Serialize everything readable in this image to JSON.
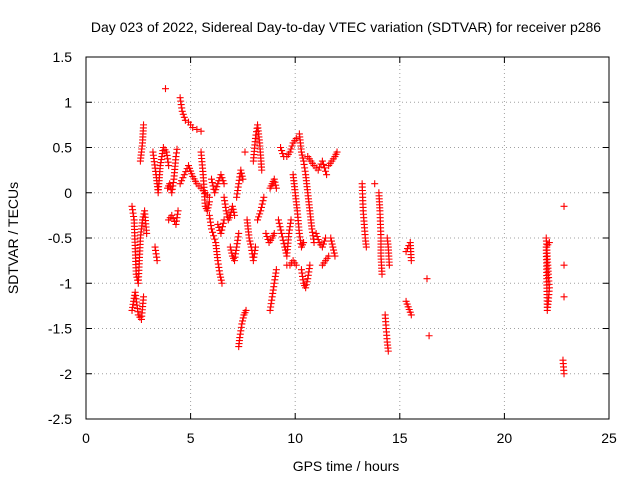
{
  "chart_data": {
    "type": "scatter",
    "title": "Day 023 of 2022, Sidereal Day-to-day VTEC variation (SDTVAR) for receiver p286",
    "xlabel": "GPS time / hours",
    "ylabel": "SDTVAR / TECUs",
    "xlim": [
      0,
      25
    ],
    "ylim": [
      -2.5,
      1.5
    ],
    "xticks": [
      0,
      5,
      10,
      15,
      20,
      25
    ],
    "xtick_labels": [
      "0",
      "5",
      "10",
      "15",
      "20",
      "25"
    ],
    "yticks": [
      -2.5,
      -2,
      -1.5,
      -1,
      -0.5,
      0,
      0.5,
      1,
      1.5
    ],
    "ytick_labels": [
      "-2.5",
      "-2",
      "-1.5",
      "-1",
      "-0.5",
      "0",
      "0.5",
      "1",
      "1.5"
    ],
    "grid": true,
    "marker": "plus",
    "color": "#ff0000",
    "series": [
      {
        "name": "SDTVAR",
        "segments": [
          [
            [
              2.2,
              -0.15
            ],
            [
              2.3,
              -0.3
            ],
            [
              2.4,
              -0.9
            ],
            [
              2.5,
              -1.0
            ],
            [
              2.6,
              -0.5
            ],
            [
              2.7,
              -0.3
            ],
            [
              2.8,
              -0.2
            ],
            [
              2.9,
              -0.45
            ]
          ],
          [
            [
              2.2,
              -1.3
            ],
            [
              2.35,
              -1.1
            ],
            [
              2.5,
              -1.35
            ],
            [
              2.65,
              -1.4
            ],
            [
              2.75,
              -1.15
            ]
          ],
          [
            [
              2.6,
              0.35
            ],
            [
              2.7,
              0.55
            ],
            [
              2.75,
              0.75
            ]
          ],
          [
            [
              3.2,
              0.45
            ],
            [
              3.35,
              0.2
            ],
            [
              3.45,
              0.0
            ],
            [
              3.55,
              0.3
            ],
            [
              3.7,
              0.5
            ],
            [
              3.85,
              0.45
            ],
            [
              3.95,
              0.3
            ]
          ],
          [
            [
              3.3,
              -0.6
            ],
            [
              3.4,
              -0.75
            ]
          ],
          [
            [
              3.8,
              1.15
            ]
          ],
          [
            [
              3.9,
              0.05
            ],
            [
              4.0,
              0.1
            ],
            [
              4.1,
              0.0
            ],
            [
              4.2,
              0.15
            ],
            [
              4.3,
              0.4
            ],
            [
              4.35,
              0.48
            ]
          ],
          [
            [
              3.95,
              -0.3
            ],
            [
              4.1,
              -0.25
            ],
            [
              4.3,
              -0.35
            ],
            [
              4.4,
              -0.2
            ]
          ],
          [
            [
              4.5,
              1.05
            ],
            [
              4.6,
              0.9
            ],
            [
              4.75,
              0.8
            ],
            [
              4.9,
              0.78
            ],
            [
              5.1,
              0.72
            ],
            [
              5.3,
              0.7
            ],
            [
              5.5,
              0.68
            ]
          ],
          [
            [
              4.5,
              0.1
            ],
            [
              4.7,
              0.2
            ],
            [
              4.9,
              0.3
            ],
            [
              5.1,
              0.18
            ],
            [
              5.3,
              0.1
            ],
            [
              5.5,
              0.05
            ],
            [
              5.7,
              0.0
            ],
            [
              5.9,
              -0.05
            ]
          ],
          [
            [
              5.5,
              0.45
            ],
            [
              5.6,
              0.2
            ],
            [
              5.7,
              -0.15
            ],
            [
              5.8,
              -0.2
            ],
            [
              5.9,
              -0.1
            ]
          ],
          [
            [
              5.9,
              -0.25
            ],
            [
              6.0,
              -0.4
            ],
            [
              6.2,
              -0.55
            ],
            [
              6.3,
              -0.75
            ],
            [
              6.4,
              -0.9
            ],
            [
              6.5,
              -1.0
            ]
          ],
          [
            [
              6.0,
              0.15
            ],
            [
              6.15,
              0.0
            ],
            [
              6.3,
              0.1
            ],
            [
              6.45,
              0.2
            ],
            [
              6.6,
              0.1
            ]
          ],
          [
            [
              6.3,
              -0.35
            ],
            [
              6.45,
              -0.45
            ],
            [
              6.6,
              -0.3
            ]
          ],
          [
            [
              6.6,
              -0.05
            ],
            [
              6.7,
              -0.2
            ],
            [
              6.8,
              -0.3
            ],
            [
              6.9,
              -0.25
            ],
            [
              7.0,
              -0.15
            ],
            [
              7.1,
              -0.25
            ]
          ],
          [
            [
              6.9,
              -0.6
            ],
            [
              7.0,
              -0.7
            ],
            [
              7.1,
              -0.75
            ],
            [
              7.2,
              -0.6
            ],
            [
              7.3,
              -0.45
            ]
          ],
          [
            [
              7.2,
              -0.05
            ],
            [
              7.3,
              0.1
            ],
            [
              7.4,
              0.25
            ],
            [
              7.5,
              0.15
            ]
          ],
          [
            [
              7.3,
              -1.7
            ],
            [
              7.35,
              -1.6
            ],
            [
              7.45,
              -1.45
            ],
            [
              7.55,
              -1.35
            ],
            [
              7.65,
              -1.3
            ]
          ],
          [
            [
              7.6,
              0.45
            ]
          ],
          [
            [
              7.7,
              -0.3
            ],
            [
              7.8,
              -0.5
            ],
            [
              7.9,
              -0.6
            ],
            [
              8.0,
              -0.75
            ],
            [
              8.1,
              -0.6
            ]
          ],
          [
            [
              8.0,
              0.35
            ],
            [
              8.1,
              0.6
            ],
            [
              8.2,
              0.75
            ],
            [
              8.3,
              0.55
            ],
            [
              8.4,
              0.25
            ]
          ],
          [
            [
              8.2,
              -0.3
            ],
            [
              8.35,
              -0.2
            ],
            [
              8.5,
              -0.05
            ]
          ],
          [
            [
              8.8,
              0.05
            ],
            [
              8.9,
              0.1
            ],
            [
              9.0,
              0.15
            ],
            [
              9.1,
              0.05
            ]
          ],
          [
            [
              8.6,
              -0.45
            ],
            [
              8.75,
              -0.55
            ],
            [
              8.9,
              -0.5
            ],
            [
              9.0,
              -0.45
            ]
          ],
          [
            [
              8.8,
              -1.3
            ],
            [
              8.9,
              -1.15
            ],
            [
              9.0,
              -1.0
            ],
            [
              9.1,
              -0.85
            ]
          ],
          [
            [
              9.3,
              0.5
            ],
            [
              9.45,
              0.4
            ],
            [
              9.6,
              0.4
            ],
            [
              9.75,
              0.45
            ],
            [
              9.9,
              0.55
            ],
            [
              10.05,
              0.6
            ]
          ],
          [
            [
              9.2,
              -0.3
            ],
            [
              9.35,
              -0.45
            ],
            [
              9.5,
              -0.6
            ],
            [
              9.6,
              -0.7
            ],
            [
              9.7,
              -0.45
            ],
            [
              9.8,
              -0.3
            ]
          ],
          [
            [
              9.6,
              -0.8
            ],
            [
              9.75,
              -0.8
            ],
            [
              9.9,
              -0.75
            ],
            [
              10.05,
              -0.8
            ]
          ],
          [
            [
              9.9,
              0.2
            ],
            [
              10.0,
              0.0
            ],
            [
              10.1,
              -0.2
            ],
            [
              10.2,
              -0.45
            ],
            [
              10.3,
              -0.6
            ],
            [
              10.4,
              -0.55
            ]
          ],
          [
            [
              10.2,
              0.65
            ],
            [
              10.3,
              0.45
            ],
            [
              10.4,
              0.35
            ],
            [
              10.5,
              0.2
            ],
            [
              10.6,
              0.0
            ],
            [
              10.7,
              -0.2
            ],
            [
              10.8,
              -0.4
            ],
            [
              10.9,
              -0.55
            ]
          ],
          [
            [
              10.3,
              -0.85
            ],
            [
              10.4,
              -1.0
            ],
            [
              10.5,
              -1.05
            ],
            [
              10.6,
              -0.95
            ],
            [
              10.7,
              -0.8
            ]
          ],
          [
            [
              10.6,
              0.4
            ],
            [
              10.75,
              0.35
            ],
            [
              10.9,
              0.3
            ],
            [
              11.1,
              0.25
            ],
            [
              11.3,
              0.35
            ],
            [
              11.5,
              0.2
            ]
          ],
          [
            [
              11.0,
              -0.45
            ],
            [
              11.15,
              -0.55
            ],
            [
              11.3,
              -0.6
            ],
            [
              11.45,
              -0.5
            ]
          ],
          [
            [
              11.3,
              -0.8
            ],
            [
              11.45,
              -0.75
            ],
            [
              11.6,
              -0.7
            ]
          ],
          [
            [
              11.6,
              0.3
            ],
            [
              11.75,
              0.35
            ],
            [
              11.9,
              0.4
            ],
            [
              12.0,
              0.45
            ]
          ],
          [
            [
              11.7,
              -0.5
            ],
            [
              11.8,
              -0.6
            ],
            [
              11.9,
              -0.7
            ]
          ],
          [
            [
              13.2,
              0.1
            ],
            [
              13.25,
              -0.2
            ],
            [
              13.3,
              -0.35
            ],
            [
              13.35,
              -0.5
            ],
            [
              13.4,
              -0.6
            ]
          ],
          [
            [
              13.8,
              0.1
            ]
          ],
          [
            [
              14.0,
              0.0
            ],
            [
              14.05,
              -0.2
            ],
            [
              14.1,
              -0.5
            ],
            [
              14.1,
              -0.7
            ],
            [
              14.15,
              -0.9
            ]
          ],
          [
            [
              14.3,
              -1.35
            ],
            [
              14.35,
              -1.5
            ],
            [
              14.4,
              -1.65
            ],
            [
              14.45,
              -1.75
            ]
          ],
          [
            [
              14.4,
              -0.5
            ],
            [
              14.45,
              -0.6
            ],
            [
              14.5,
              -0.8
            ]
          ],
          [
            [
              15.3,
              -0.65
            ],
            [
              15.5,
              -0.55
            ],
            [
              15.55,
              -0.75
            ]
          ],
          [
            [
              15.3,
              -1.2
            ],
            [
              15.55,
              -1.35
            ]
          ],
          [
            [
              16.3,
              -0.95
            ]
          ],
          [
            [
              16.4,
              -1.58
            ]
          ],
          [
            [
              22.0,
              -0.5
            ],
            [
              22.05,
              -0.7
            ],
            [
              22.1,
              -0.9
            ],
            [
              22.15,
              -1.05
            ],
            [
              22.1,
              -1.2
            ],
            [
              22.05,
              -1.3
            ],
            [
              22.0,
              -0.6
            ],
            [
              22.15,
              -0.55
            ]
          ],
          [
            [
              22.85,
              -0.15
            ]
          ],
          [
            [
              22.85,
              -0.8
            ]
          ],
          [
            [
              22.85,
              -1.15
            ]
          ],
          [
            [
              22.8,
              -1.85
            ],
            [
              22.85,
              -2.0
            ]
          ]
        ]
      }
    ]
  }
}
